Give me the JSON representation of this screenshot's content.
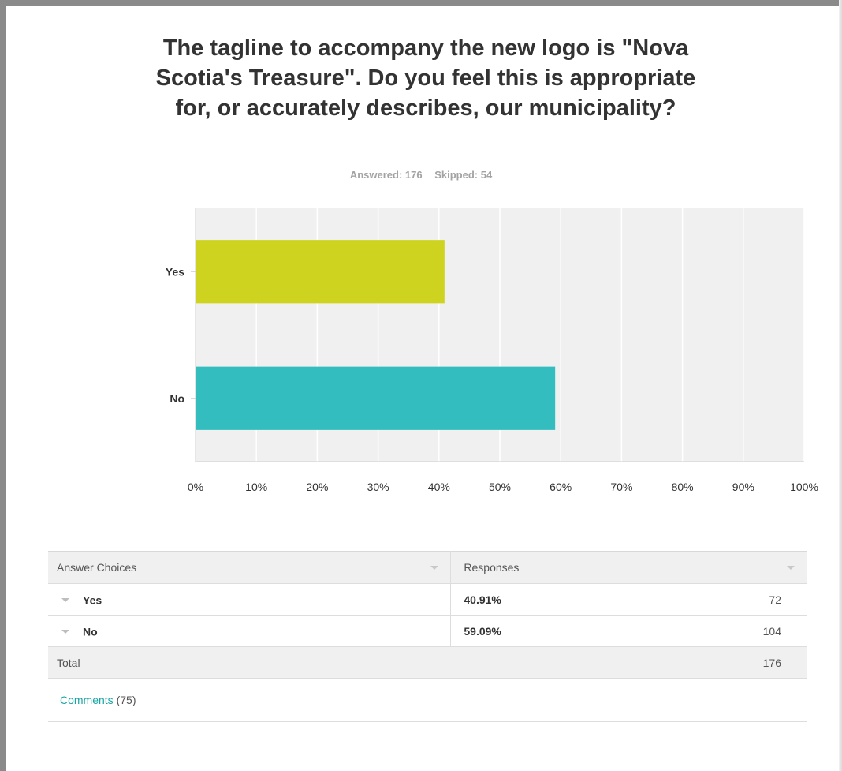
{
  "question": {
    "title": "The tagline to accompany the new logo is \"Nova Scotia's Treasure\". Do you feel this is appropriate for, or accurately describes, our municipality?"
  },
  "stats": {
    "answered": "Answered: 176",
    "skipped": "Skipped: 54"
  },
  "chart_data": {
    "type": "bar",
    "orientation": "horizontal",
    "categories": [
      "Yes",
      "No"
    ],
    "values": [
      40.91,
      59.09
    ],
    "colors": [
      "#ced320",
      "#33bdbf"
    ],
    "xlim": [
      0,
      100
    ],
    "xticks": [
      "0%",
      "10%",
      "20%",
      "30%",
      "40%",
      "50%",
      "60%",
      "70%",
      "80%",
      "90%",
      "100%"
    ],
    "grid": true,
    "background": "#f0f0f0"
  },
  "table": {
    "header": {
      "choices": "Answer Choices",
      "responses": "Responses"
    },
    "rows": [
      {
        "label": "Yes",
        "percent": "40.91%",
        "count": "72"
      },
      {
        "label": "No",
        "percent": "59.09%",
        "count": "104"
      }
    ],
    "total": {
      "label": "Total",
      "count": "176"
    }
  },
  "comments": {
    "link": "Comments",
    "count": "(75)"
  }
}
